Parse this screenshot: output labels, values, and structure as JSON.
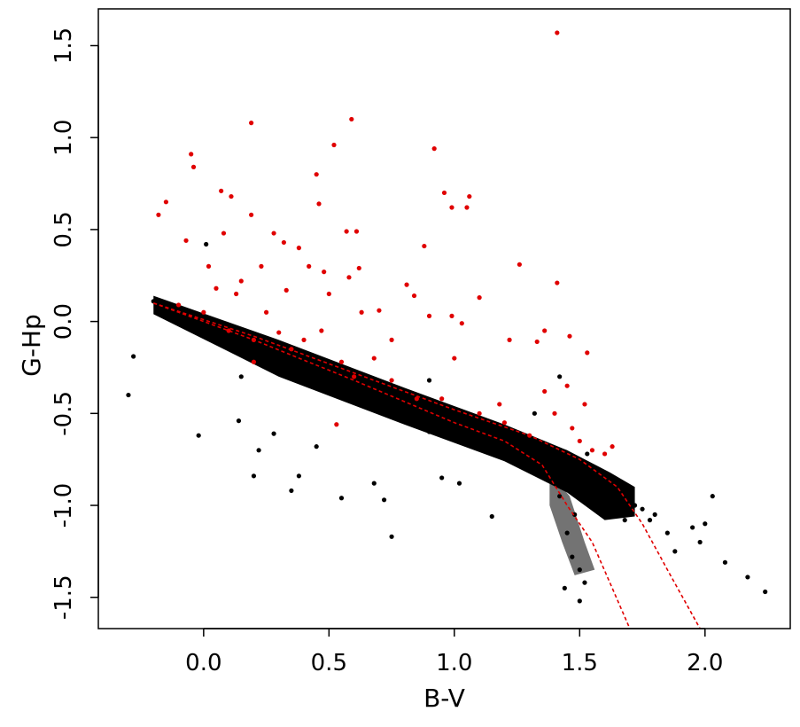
{
  "chart_data": {
    "type": "scatter",
    "title": "",
    "xlabel": "B-V",
    "ylabel": "G-Hp",
    "xlim": [
      -0.42,
      2.34
    ],
    "ylim": [
      -1.67,
      1.7
    ],
    "x_ticks": [
      0.0,
      0.5,
      1.0,
      1.5,
      2.0
    ],
    "x_tick_labels": [
      "0.0",
      "0.5",
      "1.0",
      "1.5",
      "2.0"
    ],
    "y_ticks": [
      1.5,
      1.0,
      0.5,
      0.0,
      -0.5,
      -1.0,
      -1.5
    ],
    "y_tick_labels": [
      "1.5",
      "1.0",
      "0.5",
      "0.0",
      "-0.5",
      "-1.0",
      "-1.5"
    ],
    "grid": false,
    "legend": "none",
    "colors": {
      "black_points": "#000000",
      "red_points": "#e00000",
      "curves": "#e00000"
    },
    "series": [
      {
        "marker": "dot",
        "color": "#000000",
        "points": [
          [
            -0.3,
            -0.4
          ],
          [
            -0.28,
            -0.19
          ],
          [
            -0.2,
            0.11
          ],
          [
            -0.16,
            0.1
          ],
          [
            -0.12,
            0.07
          ],
          [
            -0.1,
            0.05
          ],
          [
            -0.08,
            0.06
          ],
          [
            -0.05,
            0.02
          ],
          [
            0.0,
            0.0
          ],
          [
            0.01,
            0.42
          ],
          [
            -0.02,
            -0.62
          ],
          [
            0.05,
            -0.05
          ],
          [
            0.1,
            -0.08
          ],
          [
            0.14,
            -0.54
          ],
          [
            0.2,
            -0.84
          ],
          [
            0.22,
            -0.7
          ],
          [
            0.28,
            -0.61
          ],
          [
            0.15,
            -0.3
          ],
          [
            0.25,
            -0.25
          ],
          [
            0.3,
            -0.2
          ],
          [
            0.35,
            -0.92
          ],
          [
            0.38,
            -0.84
          ],
          [
            0.4,
            -0.3
          ],
          [
            0.45,
            -0.68
          ],
          [
            0.5,
            -0.35
          ],
          [
            0.55,
            -0.96
          ],
          [
            0.55,
            -0.4
          ],
          [
            0.6,
            -0.42
          ],
          [
            0.65,
            -0.45
          ],
          [
            0.68,
            -0.88
          ],
          [
            0.72,
            -0.97
          ],
          [
            0.75,
            -1.17
          ],
          [
            0.78,
            -0.5
          ],
          [
            0.85,
            -0.55
          ],
          [
            0.9,
            -0.32
          ],
          [
            0.9,
            -0.6
          ],
          [
            0.95,
            -0.85
          ],
          [
            1.0,
            -0.5
          ],
          [
            1.02,
            -0.88
          ],
          [
            1.05,
            -0.62
          ],
          [
            1.1,
            -0.65
          ],
          [
            1.15,
            -1.06
          ],
          [
            1.2,
            -0.7
          ],
          [
            1.25,
            -0.72
          ],
          [
            1.3,
            -0.75
          ],
          [
            1.32,
            -0.5
          ],
          [
            1.35,
            -0.8
          ],
          [
            1.38,
            -0.7
          ],
          [
            1.4,
            -0.85
          ],
          [
            1.42,
            -0.95
          ],
          [
            1.45,
            -1.15
          ],
          [
            1.47,
            -1.28
          ],
          [
            1.5,
            -1.35
          ],
          [
            1.52,
            -1.42
          ],
          [
            1.44,
            -1.45
          ],
          [
            1.48,
            -1.05
          ],
          [
            1.55,
            -0.85
          ],
          [
            1.58,
            -0.9
          ],
          [
            1.6,
            -0.95
          ],
          [
            1.62,
            -1.0
          ],
          [
            1.65,
            -1.05
          ],
          [
            1.68,
            -1.08
          ],
          [
            1.7,
            -0.93
          ],
          [
            1.72,
            -1.0
          ],
          [
            1.75,
            -1.02
          ],
          [
            1.78,
            -1.08
          ],
          [
            1.8,
            -1.05
          ],
          [
            1.85,
            -1.15
          ],
          [
            1.88,
            -1.25
          ],
          [
            1.95,
            -1.12
          ],
          [
            1.98,
            -1.2
          ],
          [
            2.0,
            -1.1
          ],
          [
            2.03,
            -0.95
          ],
          [
            2.08,
            -1.31
          ],
          [
            2.17,
            -1.39
          ],
          [
            2.24,
            -1.47
          ],
          [
            1.5,
            -1.52
          ],
          [
            1.42,
            -0.3
          ],
          [
            1.5,
            -0.75
          ],
          [
            1.53,
            -0.72
          ]
        ]
      },
      {
        "marker": "dot",
        "color": "#e00000",
        "points": [
          [
            1.41,
            1.57
          ],
          [
            0.59,
            1.1
          ],
          [
            0.19,
            1.08
          ],
          [
            0.52,
            0.96
          ],
          [
            0.92,
            0.94
          ],
          [
            -0.05,
            0.91
          ],
          [
            -0.04,
            0.84
          ],
          [
            0.45,
            0.8
          ],
          [
            0.07,
            0.71
          ],
          [
            0.11,
            0.68
          ],
          [
            0.96,
            0.7
          ],
          [
            1.06,
            0.68
          ],
          [
            -0.15,
            0.65
          ],
          [
            -0.18,
            0.58
          ],
          [
            0.46,
            0.64
          ],
          [
            1.05,
            0.62
          ],
          [
            0.99,
            0.62
          ],
          [
            0.19,
            0.58
          ],
          [
            0.57,
            0.49
          ],
          [
            0.61,
            0.49
          ],
          [
            0.28,
            0.48
          ],
          [
            0.08,
            0.48
          ],
          [
            -0.07,
            0.44
          ],
          [
            0.32,
            0.43
          ],
          [
            0.88,
            0.41
          ],
          [
            0.38,
            0.4
          ],
          [
            1.26,
            0.31
          ],
          [
            0.23,
            0.3
          ],
          [
            0.02,
            0.3
          ],
          [
            0.62,
            0.29
          ],
          [
            0.42,
            0.3
          ],
          [
            0.48,
            0.27
          ],
          [
            0.58,
            0.24
          ],
          [
            0.81,
            0.2
          ],
          [
            1.41,
            0.21
          ],
          [
            0.84,
            0.14
          ],
          [
            0.33,
            0.17
          ],
          [
            0.5,
            0.15
          ],
          [
            0.13,
            0.15
          ],
          [
            1.1,
            0.13
          ],
          [
            0.7,
            0.06
          ],
          [
            0.99,
            0.03
          ],
          [
            1.33,
            -0.11
          ],
          [
            1.46,
            -0.08
          ],
          [
            0.9,
            0.03
          ],
          [
            1.03,
            -0.01
          ],
          [
            1.22,
            -0.1
          ],
          [
            1.53,
            -0.17
          ],
          [
            1.0,
            -0.2
          ],
          [
            0.35,
            -0.15
          ],
          [
            0.2,
            -0.1
          ],
          [
            0.55,
            -0.22
          ],
          [
            0.4,
            -0.1
          ],
          [
            0.3,
            -0.06
          ],
          [
            0.1,
            -0.05
          ],
          [
            0.0,
            0.05
          ],
          [
            -0.1,
            0.09
          ],
          [
            0.6,
            -0.3
          ],
          [
            0.75,
            -0.32
          ],
          [
            0.85,
            -0.42
          ],
          [
            0.95,
            -0.42
          ],
          [
            1.1,
            -0.5
          ],
          [
            1.2,
            -0.55
          ],
          [
            1.3,
            -0.62
          ],
          [
            1.36,
            -0.38
          ],
          [
            1.4,
            -0.5
          ],
          [
            1.47,
            -0.58
          ],
          [
            1.5,
            -0.65
          ],
          [
            1.55,
            -0.7
          ],
          [
            1.6,
            -0.72
          ],
          [
            1.63,
            -0.68
          ],
          [
            1.45,
            -0.35
          ],
          [
            1.52,
            -0.45
          ],
          [
            1.18,
            -0.45
          ],
          [
            0.53,
            -0.56
          ],
          [
            0.2,
            -0.22
          ],
          [
            0.63,
            0.05
          ],
          [
            0.47,
            -0.05
          ],
          [
            0.75,
            -0.1
          ],
          [
            0.68,
            -0.2
          ],
          [
            0.25,
            0.05
          ],
          [
            1.36,
            -0.05
          ],
          [
            0.05,
            0.18
          ],
          [
            0.15,
            0.22
          ]
        ]
      }
    ],
    "curves": [
      {
        "style": "dashed",
        "color": "#e00000",
        "points": [
          [
            -0.2,
            0.1
          ],
          [
            0.2,
            -0.1
          ],
          [
            0.6,
            -0.32
          ],
          [
            1.0,
            -0.55
          ],
          [
            1.2,
            -0.65
          ],
          [
            1.35,
            -0.78
          ],
          [
            1.45,
            -1.0
          ],
          [
            1.55,
            -1.2
          ],
          [
            1.63,
            -1.45
          ],
          [
            1.7,
            -1.67
          ]
        ]
      },
      {
        "style": "dashed",
        "color": "#e00000",
        "points": [
          [
            -0.2,
            0.1
          ],
          [
            0.2,
            -0.08
          ],
          [
            0.6,
            -0.28
          ],
          [
            1.0,
            -0.48
          ],
          [
            1.3,
            -0.62
          ],
          [
            1.5,
            -0.75
          ],
          [
            1.65,
            -0.9
          ],
          [
            1.75,
            -1.1
          ],
          [
            1.85,
            -1.35
          ],
          [
            1.98,
            -1.67
          ]
        ]
      }
    ]
  }
}
